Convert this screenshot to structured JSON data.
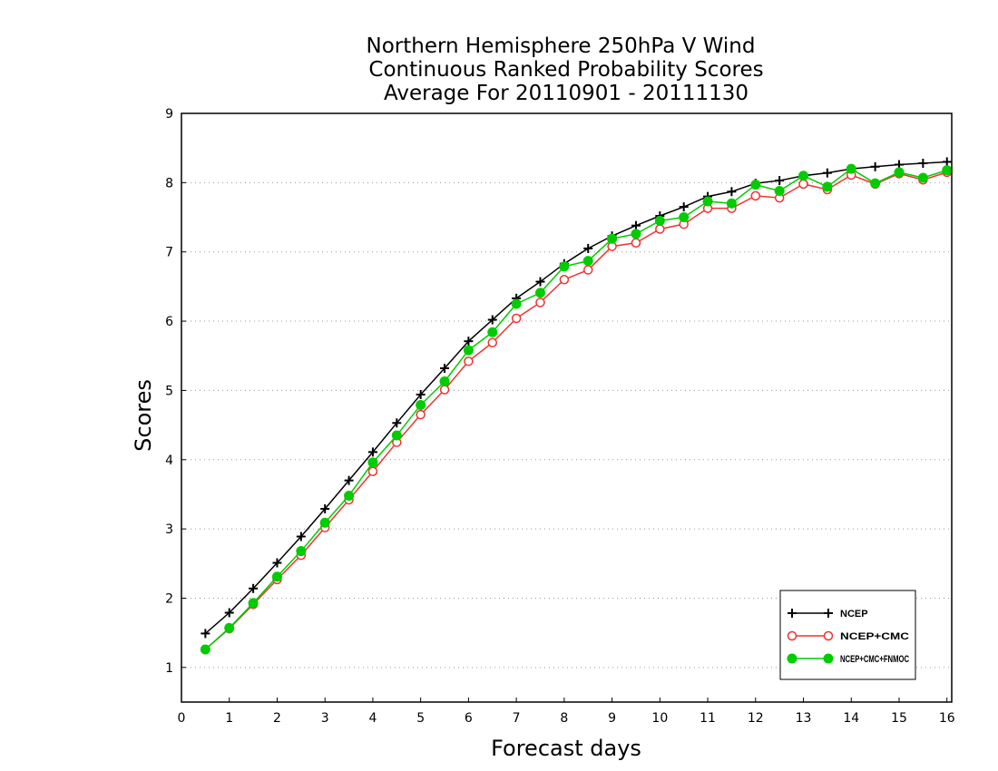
{
  "chart_data": {
    "type": "line",
    "title_lines": [
      "Northern Hemisphere 250hPa V Wind",
      "Continuous Ranked Probability Scores",
      "Average For 20110901 - 20111130"
    ],
    "xlabel": "Forecast days",
    "ylabel": "Scores",
    "xlim": [
      0,
      16.1
    ],
    "ylim": [
      0.5,
      9
    ],
    "x_ticks": [
      0,
      1,
      2,
      3,
      4,
      5,
      6,
      7,
      8,
      9,
      10,
      11,
      12,
      13,
      14,
      15,
      16
    ],
    "y_ticks": [
      1,
      2,
      3,
      4,
      5,
      6,
      7,
      8,
      9
    ],
    "grid": "horizontal dotted",
    "legend_position": "bottom-right",
    "x": [
      0.5,
      1,
      1.5,
      2,
      2.5,
      3,
      3.5,
      4,
      4.5,
      5,
      5.5,
      6,
      6.5,
      7,
      7.5,
      8,
      8.5,
      9,
      9.5,
      10,
      10.5,
      11,
      11.5,
      12,
      12.5,
      13,
      13.5,
      14,
      14.5,
      15,
      15.5,
      16
    ],
    "series": [
      {
        "name": "NCEP",
        "color": "#000000",
        "marker": "plus",
        "values": [
          1.49,
          1.79,
          2.14,
          2.51,
          2.89,
          3.29,
          3.7,
          4.11,
          4.53,
          4.94,
          5.32,
          5.71,
          6.02,
          6.33,
          6.57,
          6.83,
          7.05,
          7.23,
          7.38,
          7.52,
          7.65,
          7.8,
          7.87,
          7.99,
          8.03,
          8.1,
          8.14,
          8.2,
          8.23,
          8.26,
          8.28,
          8.3
        ]
      },
      {
        "name": "NCEP+CMC",
        "color": "#ee3333",
        "marker": "open-circle",
        "values": [
          1.26,
          1.56,
          1.91,
          2.27,
          2.62,
          3.02,
          3.42,
          3.83,
          4.25,
          4.65,
          5.01,
          5.42,
          5.69,
          6.04,
          6.27,
          6.6,
          6.74,
          7.08,
          7.13,
          7.33,
          7.4,
          7.63,
          7.63,
          7.81,
          7.78,
          7.98,
          7.9,
          8.11,
          7.98,
          8.13,
          8.04,
          8.15
        ]
      },
      {
        "name": "NCEP+CMC+FNMOC",
        "color": "#00cc00",
        "marker": "filled-circle",
        "values": [
          1.26,
          1.57,
          1.93,
          2.31,
          2.68,
          3.09,
          3.48,
          3.96,
          4.35,
          4.79,
          5.13,
          5.58,
          5.84,
          6.25,
          6.41,
          6.79,
          6.87,
          7.19,
          7.26,
          7.45,
          7.5,
          7.73,
          7.7,
          7.97,
          7.88,
          8.1,
          7.94,
          8.2,
          7.99,
          8.15,
          8.07,
          8.18
        ]
      }
    ]
  }
}
